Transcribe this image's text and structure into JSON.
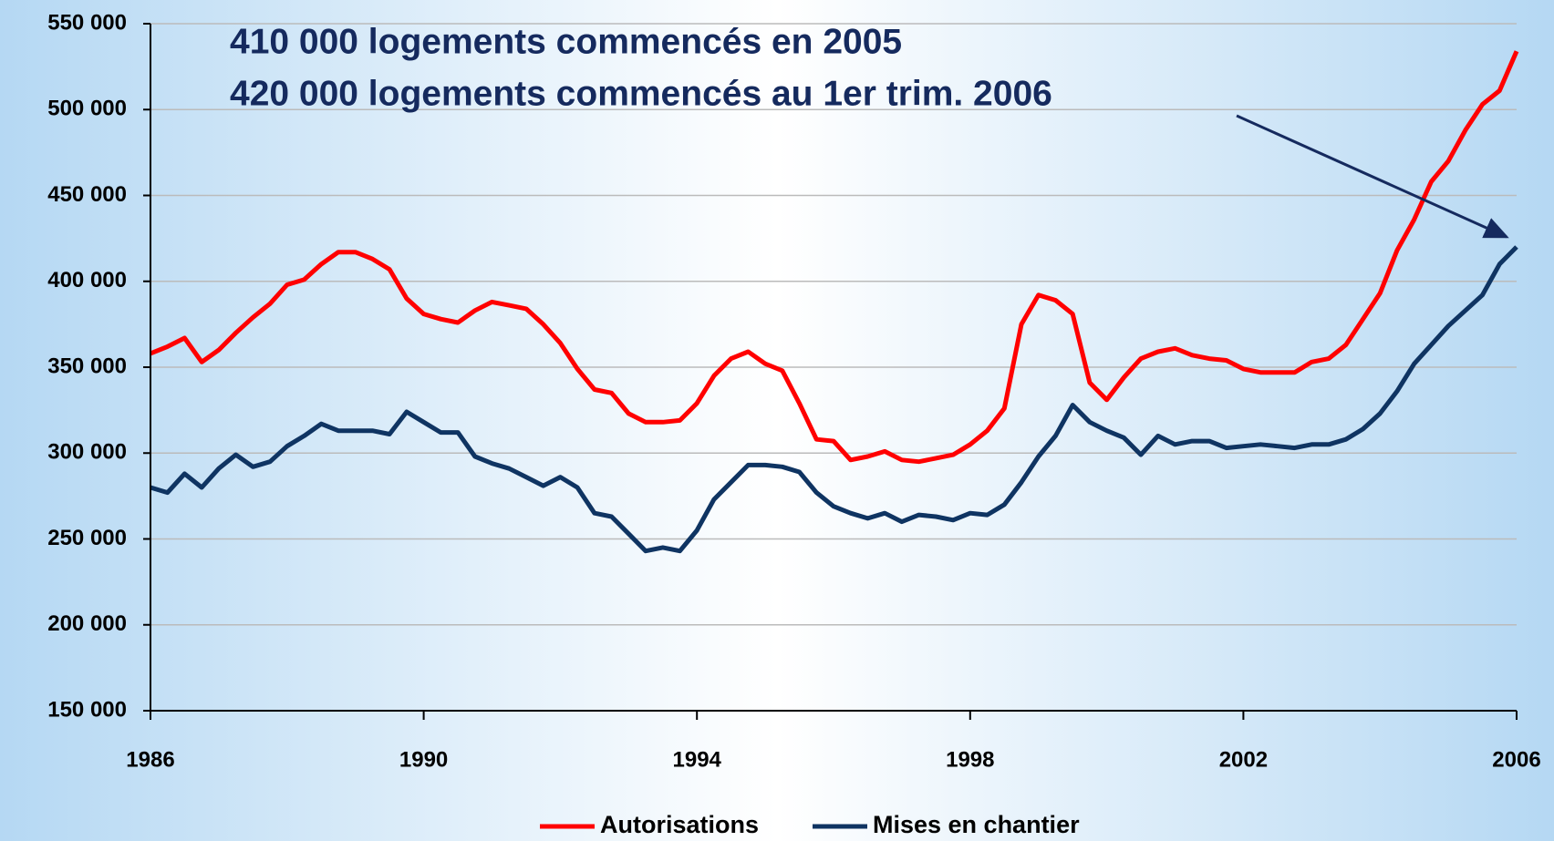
{
  "chart_data": {
    "type": "line",
    "annotations": [
      "410 000 logements commencés en 2005",
      "420 000 logements commencés au 1er trim. 2006"
    ],
    "x": [
      1986,
      1986.25,
      1986.5,
      1986.75,
      1987,
      1987.25,
      1987.5,
      1987.75,
      1988,
      1988.25,
      1988.5,
      1988.75,
      1989,
      1989.25,
      1989.5,
      1989.75,
      1990,
      1990.25,
      1990.5,
      1990.75,
      1991,
      1991.25,
      1991.5,
      1991.75,
      1992,
      1992.25,
      1992.5,
      1992.75,
      1993,
      1993.25,
      1993.5,
      1993.75,
      1994,
      1994.25,
      1994.5,
      1994.75,
      1995,
      1995.25,
      1995.5,
      1995.75,
      1996,
      1996.25,
      1996.5,
      1996.75,
      1997,
      1997.25,
      1997.5,
      1997.75,
      1998,
      1998.25,
      1998.5,
      1998.75,
      1999,
      1999.25,
      1999.5,
      1999.75,
      2000,
      2000.25,
      2000.5,
      2000.75,
      2001,
      2001.25,
      2001.5,
      2001.75,
      2002,
      2002.25,
      2002.5,
      2002.75,
      2003,
      2003.25,
      2003.5,
      2003.75,
      2004,
      2004.25,
      2004.5,
      2004.75,
      2005,
      2005.25,
      2005.5,
      2005.75,
      2006
    ],
    "series": [
      {
        "name": "Autorisations",
        "color": "#ff0000",
        "values": [
          358000,
          362000,
          367000,
          353000,
          360000,
          370000,
          379000,
          387000,
          398000,
          401000,
          410000,
          417000,
          417000,
          413000,
          407000,
          390000,
          381000,
          378000,
          376000,
          383000,
          388000,
          386000,
          384000,
          375000,
          364000,
          349000,
          337000,
          335000,
          323000,
          318000,
          318000,
          319000,
          329000,
          345000,
          355000,
          359000,
          352000,
          348000,
          329000,
          308000,
          307000,
          296000,
          298000,
          301000,
          296000,
          295000,
          297000,
          299000,
          305000,
          313000,
          326000,
          375000,
          392000,
          389000,
          381000,
          341000,
          331000,
          344000,
          355000,
          359000,
          361000,
          357000,
          355000,
          354000,
          349000,
          347000,
          347000,
          347000,
          353000,
          355000,
          363000,
          378000,
          393000,
          418000,
          436000,
          458000,
          470000,
          488000,
          503000,
          511000,
          534000
        ]
      },
      {
        "name": "Mises en chantier",
        "color": "#0f3462",
        "values": [
          280000,
          277000,
          288000,
          280000,
          291000,
          299000,
          292000,
          295000,
          304000,
          310000,
          317000,
          313000,
          313000,
          313000,
          311000,
          324000,
          318000,
          312000,
          312000,
          298000,
          294000,
          291000,
          286000,
          281000,
          286000,
          280000,
          265000,
          263000,
          253000,
          243000,
          245000,
          243000,
          255000,
          273000,
          283000,
          293000,
          293000,
          292000,
          289000,
          277000,
          269000,
          265000,
          262000,
          265000,
          260000,
          264000,
          263000,
          261000,
          265000,
          264000,
          270000,
          283000,
          298000,
          310000,
          328000,
          318000,
          313000,
          309000,
          299000,
          310000,
          305000,
          307000,
          307000,
          303000,
          304000,
          305000,
          304000,
          303000,
          305000,
          305000,
          308000,
          314000,
          323000,
          336000,
          352000,
          363000,
          374000,
          383000,
          392000,
          410000,
          420000
        ]
      }
    ],
    "xlim": [
      1986,
      2006
    ],
    "xticks": [
      1986,
      1990,
      1994,
      1998,
      2002,
      2006
    ],
    "ylim": [
      150000,
      550000
    ],
    "yticks": [
      {
        "value": 150000,
        "label": "150 000"
      },
      {
        "value": 200000,
        "label": "200 000"
      },
      {
        "value": 250000,
        "label": "250 000"
      },
      {
        "value": 300000,
        "label": "300 000"
      },
      {
        "value": 350000,
        "label": "350 000"
      },
      {
        "value": 400000,
        "label": "400 000"
      },
      {
        "value": 450000,
        "label": "450 000"
      },
      {
        "value": 500000,
        "label": "500 000"
      },
      {
        "value": 550000,
        "label": "550 000"
      }
    ],
    "grid": true,
    "legend": "bottom"
  }
}
